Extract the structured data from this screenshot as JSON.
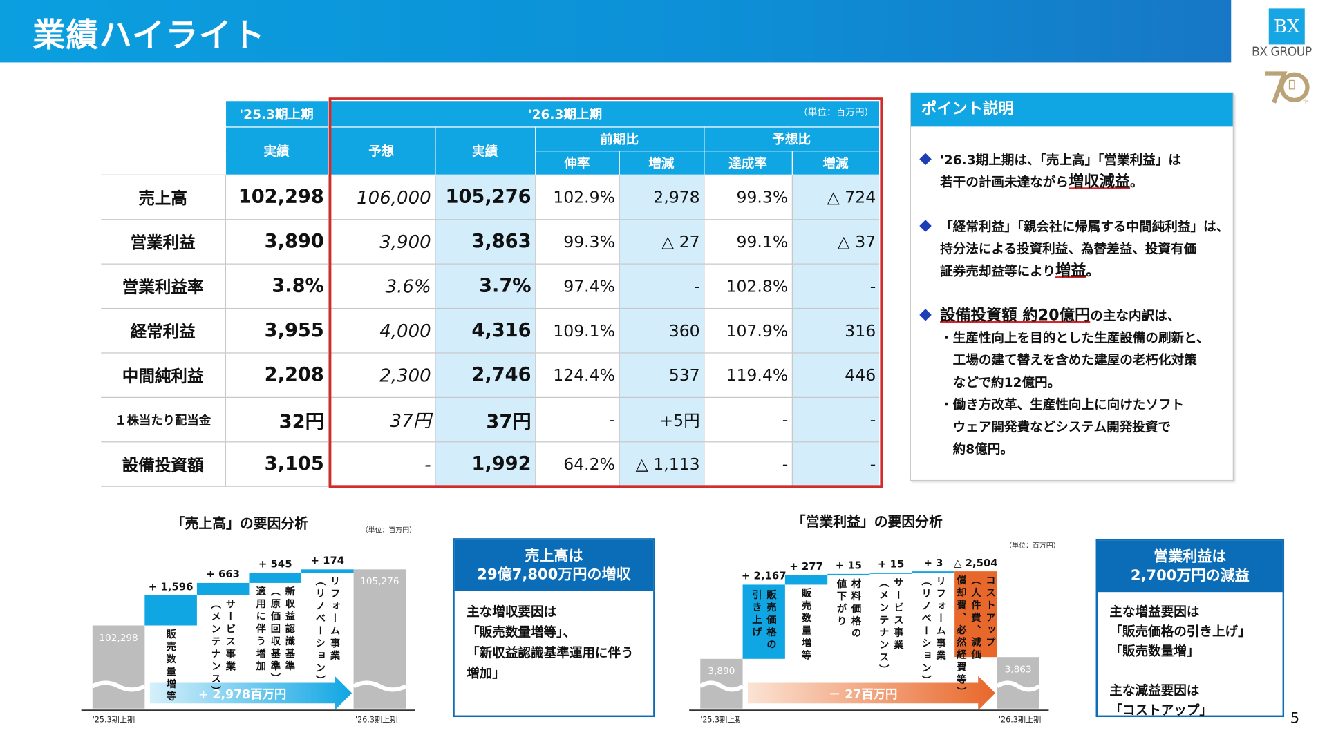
{
  "header": {
    "title": "業績ハイライト",
    "logo_mark": "BX",
    "logo_text": "BX GROUP",
    "anniversary": "70th"
  },
  "table": {
    "prev_period": "'25.3期上期",
    "cur_period": "'26.3期上期",
    "unit": "（単位：百万円）",
    "h_actual": "実績",
    "h_forecast": "予想",
    "h_actual2": "実績",
    "h_yoy": "前期比",
    "h_vs_fc": "予想比",
    "h_growth": "伸率",
    "h_diff": "増減",
    "h_achieve": "達成率",
    "h_diff2": "増減",
    "rows": [
      {
        "label": "売上高",
        "prev": "102,298",
        "forecast": "106,000",
        "actual": "105,276",
        "growth": "102.9%",
        "diff": "2,978",
        "achieve": "99.3%",
        "diff2": "△ 724"
      },
      {
        "label": "営業利益",
        "prev": "3,890",
        "forecast": "3,900",
        "actual": "3,863",
        "growth": "99.3%",
        "diff": "△ 27",
        "achieve": "99.1%",
        "diff2": "△ 37"
      },
      {
        "label": "営業利益率",
        "prev": "3.8%",
        "forecast": "3.6%",
        "actual": "3.7%",
        "growth": "97.4%",
        "diff": "-",
        "achieve": "102.8%",
        "diff2": "-"
      },
      {
        "label": "経常利益",
        "prev": "3,955",
        "forecast": "4,000",
        "actual": "4,316",
        "growth": "109.1%",
        "diff": "360",
        "achieve": "107.9%",
        "diff2": "316"
      },
      {
        "label": "中間純利益",
        "prev": "2,208",
        "forecast": "2,300",
        "actual": "2,746",
        "growth": "124.4%",
        "diff": "537",
        "achieve": "119.4%",
        "diff2": "446"
      },
      {
        "label": "１株当たり配当金",
        "prev": "32円",
        "forecast": "37円",
        "actual": "37円",
        "growth": "-",
        "diff": "+5円",
        "achieve": "-",
        "diff2": "-"
      },
      {
        "label": "設備投資額",
        "prev": "3,105",
        "forecast": "-",
        "actual": "1,992",
        "growth": "64.2%",
        "diff": "△ 1,113",
        "achieve": "-",
        "diff2": "-"
      }
    ]
  },
  "points": {
    "title": "ポイント説明",
    "bullets": [
      {
        "lines": [
          [
            {
              "t": "'26.3期上期は、「売上高」「営業利益」は"
            }
          ],
          [
            {
              "t": "若干の計画未達ながら"
            },
            {
              "t": "増収減益",
              "u": true
            },
            {
              "t": "。"
            }
          ]
        ]
      },
      {
        "lines": [
          [
            {
              "t": "「経常利益」「親会社に帰属する中間純利益」は、"
            }
          ],
          [
            {
              "t": "持分法による投資利益、為替差益、投資有価"
            }
          ],
          [
            {
              "t": "証券売却益等により"
            },
            {
              "t": "増益",
              "u": true
            },
            {
              "t": "。"
            }
          ]
        ]
      },
      {
        "lines": [
          [
            {
              "t": "設備投資額 約20億円",
              "u": true
            },
            {
              "t": "の主な内訳は、"
            }
          ],
          [
            {
              "t": "・生産性向上を目的とした生産設備の刷新と、"
            }
          ],
          [
            {
              "t": "　工場の建て替えを含めた建屋の老朽化対策"
            }
          ],
          [
            {
              "t": "　などで約12億円。"
            }
          ],
          [
            {
              "t": "・働き方改革、生産性向上に向けたソフト"
            }
          ],
          [
            {
              "t": "　ウェア開発費などシステム開発投資で"
            }
          ],
          [
            {
              "t": "　約8億円。"
            }
          ]
        ]
      }
    ]
  },
  "chart_data": [
    {
      "type": "waterfall",
      "title": "「売上高」の要因分析",
      "unit": "（単位：百万円）",
      "start": {
        "label": "'25.3期上期",
        "value": 102298,
        "display": "102,298"
      },
      "end": {
        "label": "'26.3期上期",
        "value": 105276,
        "display": "105,276"
      },
      "steps": [
        {
          "value": 1596,
          "display": "+ 1,596",
          "label": "販売数量増等"
        },
        {
          "value": 663,
          "display": "+ 663",
          "label": "サービス事業\n（メンテナンス）"
        },
        {
          "value": 545,
          "display": "+ 545",
          "label": "新収益認識基準\n（原価回収基準）\n適用に伴う増加"
        },
        {
          "value": 174,
          "display": "+ 174",
          "label": "リフォーム事業\n（リノベーション）"
        }
      ],
      "total_label": "+ 2,978百万円",
      "colors": {
        "base": "#bdbdbd",
        "up": "#10a6e3",
        "down": "#e8672a"
      }
    },
    {
      "type": "waterfall",
      "title": "「営業利益」の要因分析",
      "unit": "（単位：百万円）",
      "start": {
        "label": "'25.3期上期",
        "value": 3890,
        "display": "3,890"
      },
      "end": {
        "label": "'26.3期上期",
        "value": 3863,
        "display": "3,863"
      },
      "steps": [
        {
          "value": 2167,
          "display": "+ 2,167",
          "label": "販売価格の\n引き上げ"
        },
        {
          "value": 277,
          "display": "+ 277",
          "label": "販売数量増等"
        },
        {
          "value": 15,
          "display": "+ 15",
          "label": "材料価格の\n値下がり"
        },
        {
          "value": 15,
          "display": "+ 15",
          "label": "サービス事業\n（メンテナンス）"
        },
        {
          "value": 3,
          "display": "+ 3",
          "label": "リフォーム事業\n（リノベーション）"
        },
        {
          "value": -2504,
          "display": "△ 2,504",
          "label": "コストアップ\n（人件費、減価\n償却費、必然経費等）"
        }
      ],
      "total_label": "－ 27百万円",
      "colors": {
        "base": "#bdbdbd",
        "up": "#10a6e3",
        "down": "#e8672a"
      }
    }
  ],
  "callouts": [
    {
      "title": "売上高は\n29億7,800万円の増収",
      "body": "主な増収要因は\n「販売数量増等」、\n「新収益認識基準運用に伴う\n増加」"
    },
    {
      "title": "営業利益は\n2,700万円の減益",
      "body": "主な増益要因は\n「販売価格の引き上げ」\n「販売数量増」\n\n主な減益要因は\n「コストアップ」"
    }
  ],
  "page_number": "5"
}
